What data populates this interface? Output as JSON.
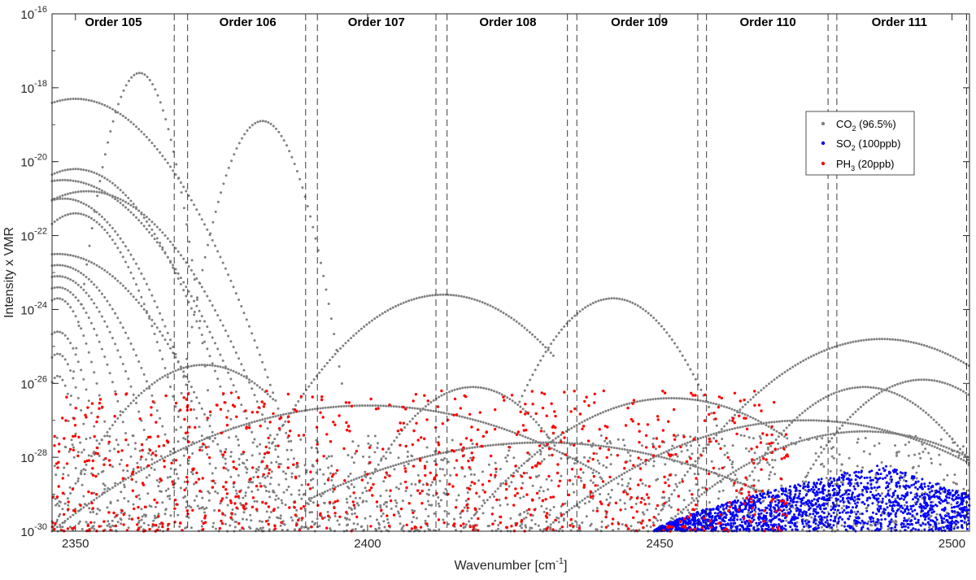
{
  "chart_data": {
    "type": "scatter",
    "xlabel": "Wavenumber [cm",
    "xlabel_sup": "-1",
    "xlabel_end": "]",
    "ylabel": "Intensity x VMR",
    "xlim": [
      2346,
      2503
    ],
    "ylim_log10": [
      -30,
      -16
    ],
    "y_scale": "log",
    "x_ticks": [
      2350,
      2400,
      2450,
      2500
    ],
    "x_tick_labels": [
      "2350",
      "2400",
      "2450",
      "2500"
    ],
    "y_tick_exponents": [
      -30,
      -28,
      -26,
      -24,
      -22,
      -20,
      -18,
      -16
    ],
    "y_tick_base": "10",
    "legend_position": "top-right",
    "orders": [
      {
        "label": "Order 105",
        "x_center": 2356.5,
        "boundary_end": [
          2366.9,
          2369.2
        ]
      },
      {
        "label": "Order 106",
        "x_center": 2379.5,
        "boundary_end": [
          2389.4,
          2391.4
        ]
      },
      {
        "label": "Order 107",
        "x_center": 2401.5,
        "boundary_end": [
          2411.7,
          2413.6
        ]
      },
      {
        "label": "Order 108",
        "x_center": 2424.0,
        "boundary_end": [
          2434.2,
          2435.8
        ]
      },
      {
        "label": "Order 109",
        "x_center": 2446.5,
        "boundary_end": [
          2456.5,
          2458.0
        ]
      },
      {
        "label": "Order 110",
        "x_center": 2468.5,
        "boundary_end": [
          2478.8,
          2480.3
        ]
      },
      {
        "label": "Order 111",
        "x_center": 2491.0,
        "boundary_end": [
          2502.5,
          2502.5
        ]
      }
    ],
    "series": [
      {
        "name": "CO2 (96.5%)",
        "label_main": "CO",
        "label_sub": "2",
        "label_rest": " (96.5%)",
        "color": "#808080",
        "arcs": [
          {
            "x1": 2347,
            "x2": 2374,
            "peak_x": 2361,
            "peak_log": -17.6
          },
          {
            "x1": 2346,
            "x2": 2391,
            "peak_x": 2350,
            "peak_log": -18.3
          },
          {
            "x1": 2365,
            "x2": 2396,
            "peak_x": 2382,
            "peak_log": -18.9
          },
          {
            "x1": 2346,
            "x2": 2382,
            "peak_x": 2350,
            "peak_log": -20.2
          },
          {
            "x1": 2346,
            "x2": 2386,
            "peak_x": 2348,
            "peak_log": -20.5
          },
          {
            "x1": 2346,
            "x2": 2389,
            "peak_x": 2352,
            "peak_log": -20.8
          },
          {
            "x1": 2346,
            "x2": 2376,
            "peak_x": 2348,
            "peak_log": -21.0
          },
          {
            "x1": 2346,
            "x2": 2372,
            "peak_x": 2350,
            "peak_log": -21.4
          },
          {
            "x1": 2346,
            "x2": 2380,
            "peak_x": 2347,
            "peak_log": -22.5
          },
          {
            "x1": 2346,
            "x2": 2370,
            "peak_x": 2347,
            "peak_log": -22.8
          },
          {
            "x1": 2346,
            "x2": 2366,
            "peak_x": 2347,
            "peak_log": -23.1
          },
          {
            "x1": 2346,
            "x2": 2362,
            "peak_x": 2347,
            "peak_log": -23.4
          },
          {
            "x1": 2346,
            "x2": 2358,
            "peak_x": 2347,
            "peak_log": -23.7
          },
          {
            "x1": 2346,
            "x2": 2356,
            "peak_x": 2347,
            "peak_log": -24.6
          },
          {
            "x1": 2346,
            "x2": 2354,
            "peak_x": 2347,
            "peak_log": -25.2
          },
          {
            "x1": 2346,
            "x2": 2352,
            "peak_x": 2347,
            "peak_log": -25.8
          },
          {
            "x1": 2346,
            "x2": 2384,
            "peak_x": 2372,
            "peak_log": -25.5
          },
          {
            "x1": 2376,
            "x2": 2432,
            "peak_x": 2413,
            "peak_log": -23.6
          },
          {
            "x1": 2426,
            "x2": 2466,
            "peak_x": 2442,
            "peak_log": -23.7
          },
          {
            "x1": 2448,
            "x2": 2503,
            "peak_x": 2488,
            "peak_log": -24.8
          },
          {
            "x1": 2460,
            "x2": 2503,
            "peak_x": 2485,
            "peak_log": -26.1
          },
          {
            "x1": 2396,
            "x2": 2432,
            "peak_x": 2418,
            "peak_log": -26.1
          },
          {
            "x1": 2416,
            "x2": 2472,
            "peak_x": 2452,
            "peak_log": -26.4
          },
          {
            "x1": 2470,
            "x2": 2503,
            "peak_x": 2495,
            "peak_log": -25.9
          },
          {
            "x1": 2346,
            "x2": 2440,
            "peak_x": 2400,
            "peak_log": -26.6
          },
          {
            "x1": 2430,
            "x2": 2503,
            "peak_x": 2475,
            "peak_log": -27.0
          },
          {
            "x1": 2390,
            "x2": 2480,
            "peak_x": 2430,
            "peak_log": -27.6
          },
          {
            "x1": 2450,
            "x2": 2503,
            "peak_x": 2485,
            "peak_log": -27.3
          }
        ]
      },
      {
        "name": "SO2 (100ppb)",
        "label_main": "SO",
        "label_sub": "2",
        "label_rest": " (100ppb)",
        "color": "#0000ff",
        "region": {
          "x1": 2449,
          "x2": 2503,
          "peak_x": 2488,
          "peak_log": -28.2
        }
      },
      {
        "name": "PH3 (20ppb)",
        "label_main": "PH",
        "label_sub": "3",
        "label_rest": " (20ppb)",
        "color": "#ff0000",
        "region": {
          "x1": 2346,
          "x2": 2472,
          "log_min": -30,
          "log_max": -26.2
        }
      }
    ]
  }
}
